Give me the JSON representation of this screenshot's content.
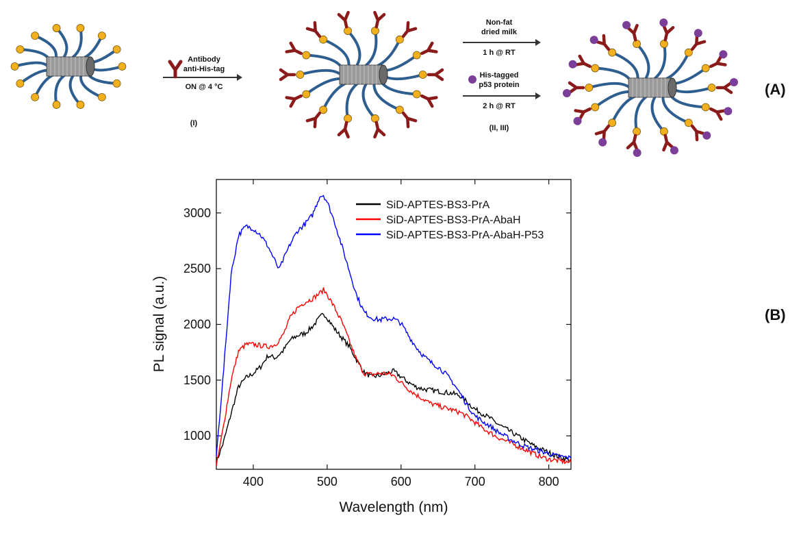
{
  "panel_labels": {
    "a": "(A)",
    "b": "(B)"
  },
  "schematic": {
    "step1": {
      "line1": "Antibody",
      "line2": "anti-His-tag",
      "condition": "ON @ 4 °C",
      "number": "(I)"
    },
    "step2": {
      "line1": "Non-fat",
      "line2": "dried milk",
      "condition1": "1 h @ RT",
      "line3": "His-tagged",
      "line4": "p53 protein",
      "condition2": "2 h @ RT",
      "number": "(II, III)"
    },
    "colors": {
      "tube": "#9a9a9a",
      "strand": "#2e5d8f",
      "bead": "#f2b01e",
      "antibody": "#8b1a1a",
      "protein": "#7b3f99"
    }
  },
  "chart_data": {
    "type": "line",
    "xlabel": "Wavelength (nm)",
    "ylabel": "PL signal (a.u.)",
    "xlim": [
      350,
      830
    ],
    "ylim": [
      700,
      3300
    ],
    "xticks": [
      400,
      500,
      600,
      700,
      800
    ],
    "yticks": [
      1000,
      1500,
      2000,
      2500,
      3000
    ],
    "grid": false,
    "legend_position": "top-right",
    "series": [
      {
        "name": "SiD-APTES-BS3-PrA",
        "color": "#000000",
        "x": [
          350,
          360,
          370,
          380,
          390,
          400,
          410,
          420,
          430,
          440,
          450,
          460,
          470,
          480,
          490,
          495,
          500,
          510,
          520,
          530,
          540,
          550,
          560,
          570,
          580,
          590,
          600,
          610,
          620,
          630,
          640,
          650,
          660,
          670,
          680,
          690,
          700,
          710,
          720,
          730,
          740,
          750,
          760,
          770,
          780,
          790,
          800,
          810,
          820,
          830
        ],
        "y": [
          760,
          950,
          1200,
          1440,
          1520,
          1560,
          1620,
          1720,
          1700,
          1760,
          1860,
          1900,
          1920,
          1980,
          2060,
          2100,
          2060,
          1960,
          1880,
          1800,
          1680,
          1570,
          1530,
          1540,
          1560,
          1580,
          1530,
          1480,
          1440,
          1420,
          1410,
          1400,
          1390,
          1380,
          1360,
          1300,
          1240,
          1200,
          1160,
          1110,
          1070,
          1030,
          990,
          950,
          910,
          880,
          850,
          820,
          800,
          780
        ]
      },
      {
        "name": "SiD-APTES-BS3-PrA-AbaH",
        "color": "#ff0000",
        "x": [
          350,
          360,
          370,
          380,
          390,
          400,
          410,
          420,
          430,
          440,
          450,
          460,
          470,
          480,
          490,
          495,
          500,
          510,
          520,
          530,
          540,
          550,
          560,
          570,
          580,
          590,
          600,
          610,
          620,
          630,
          640,
          650,
          660,
          670,
          680,
          690,
          700,
          710,
          720,
          730,
          740,
          750,
          760,
          770,
          780,
          790,
          800,
          810,
          820,
          830
        ],
        "y": [
          720,
          1100,
          1500,
          1760,
          1820,
          1820,
          1810,
          1800,
          1820,
          1900,
          2060,
          2150,
          2200,
          2230,
          2280,
          2310,
          2270,
          2150,
          2020,
          1850,
          1680,
          1560,
          1550,
          1560,
          1560,
          1540,
          1480,
          1420,
          1370,
          1330,
          1290,
          1270,
          1250,
          1230,
          1210,
          1170,
          1120,
          1070,
          1030,
          990,
          960,
          930,
          900,
          870,
          840,
          810,
          790,
          780,
          770,
          760
        ]
      },
      {
        "name": "SiD-APTES-BS3-PrA-AbaH-P53",
        "color": "#0000ff",
        "x": [
          350,
          360,
          370,
          380,
          390,
          400,
          410,
          420,
          430,
          435,
          440,
          450,
          460,
          470,
          480,
          490,
          495,
          500,
          510,
          520,
          530,
          540,
          550,
          560,
          570,
          580,
          590,
          600,
          610,
          620,
          630,
          640,
          650,
          660,
          670,
          680,
          690,
          700,
          710,
          720,
          730,
          740,
          750,
          760,
          770,
          780,
          790,
          800,
          810,
          820,
          830
        ],
        "y": [
          820,
          1600,
          2450,
          2800,
          2880,
          2860,
          2800,
          2700,
          2560,
          2490,
          2570,
          2720,
          2840,
          2900,
          2980,
          3150,
          3160,
          3100,
          2920,
          2700,
          2480,
          2260,
          2110,
          2060,
          2040,
          2050,
          2050,
          2010,
          1900,
          1800,
          1720,
          1660,
          1620,
          1560,
          1480,
          1380,
          1270,
          1180,
          1130,
          1090,
          1040,
          1000,
          960,
          930,
          900,
          880,
          860,
          840,
          820,
          810,
          800
        ]
      }
    ]
  }
}
